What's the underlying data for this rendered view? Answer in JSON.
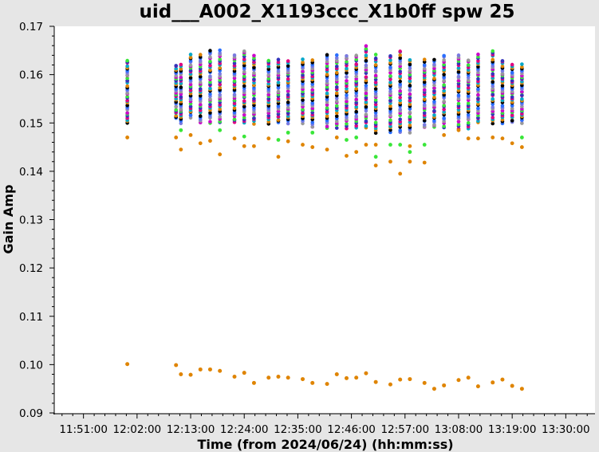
{
  "chart_data": {
    "type": "scatter",
    "title": "uid___A002_X1193ccc_X1b0ff spw 25",
    "xlabel": "Time (from 2024/06/24) (hh:mm:ss)",
    "ylabel": "Gain Amp",
    "xlim": [
      "11:45:00",
      "13:36:00"
    ],
    "ylim": [
      0.09,
      0.17
    ],
    "xticks": [
      "11:51:00",
      "12:02:00",
      "12:13:00",
      "12:24:00",
      "12:35:00",
      "12:46:00",
      "12:57:00",
      "13:08:00",
      "13:19:00",
      "13:30:00"
    ],
    "yticks": [
      "0.09",
      "0.10",
      "0.11",
      "0.12",
      "0.13",
      "0.14",
      "0.15",
      "0.16",
      "0.17"
    ],
    "grid": false,
    "legend": "none",
    "colors": [
      "#000000",
      "#e0007f",
      "#cc00cc",
      "#2a6fff",
      "#00a6c8",
      "#39e639",
      "#7a7adf",
      "#df8400",
      "#3333bb",
      "#999999"
    ],
    "low_series_color": "#df8400",
    "times": [
      "12:00:00",
      "12:10:00",
      "12:11:00",
      "12:13:00",
      "12:15:00",
      "12:17:00",
      "12:19:00",
      "12:22:00",
      "12:24:00",
      "12:26:00",
      "12:29:00",
      "12:31:00",
      "12:33:00",
      "12:36:00",
      "12:38:00",
      "12:41:00",
      "12:43:00",
      "12:45:00",
      "12:47:00",
      "12:49:00",
      "12:51:00",
      "12:54:00",
      "12:56:00",
      "12:58:00",
      "13:01:00",
      "13:03:00",
      "13:05:00",
      "13:08:00",
      "13:10:00",
      "13:12:00",
      "13:15:00",
      "13:17:00",
      "13:19:00",
      "13:21:00"
    ],
    "low_series": [
      0.1001,
      0.0999,
      0.098,
      0.0979,
      0.099,
      0.099,
      0.0987,
      0.0975,
      0.0983,
      0.0962,
      0.0973,
      0.0975,
      0.0973,
      0.097,
      0.0962,
      0.096,
      0.098,
      0.0972,
      0.0973,
      0.0982,
      0.0964,
      0.0959,
      0.0969,
      0.097,
      0.0962,
      0.095,
      0.0957,
      0.0968,
      0.0973,
      0.0955,
      0.0963,
      0.0969,
      0.0956,
      0.095
    ],
    "upper_cluster": [
      {
        "t": "12:00:00",
        "min": 0.15,
        "max": 0.163,
        "outliers": [
          0.147
        ]
      },
      {
        "t": "12:10:00",
        "min": 0.151,
        "max": 0.162,
        "outliers": [
          0.147
        ]
      },
      {
        "t": "12:11:00",
        "min": 0.15,
        "max": 0.162,
        "outliers": [
          0.1445,
          0.1485
        ]
      },
      {
        "t": "12:13:00",
        "min": 0.151,
        "max": 0.164,
        "outliers": [
          0.1475
        ]
      },
      {
        "t": "12:15:00",
        "min": 0.15,
        "max": 0.164,
        "outliers": [
          0.1458
        ]
      },
      {
        "t": "12:17:00",
        "min": 0.15,
        "max": 0.165,
        "outliers": [
          0.1463
        ]
      },
      {
        "t": "12:19:00",
        "min": 0.15,
        "max": 0.165,
        "outliers": [
          0.1435,
          0.1485
        ]
      },
      {
        "t": "12:22:00",
        "min": 0.15,
        "max": 0.164,
        "outliers": [
          0.1468
        ]
      },
      {
        "t": "12:24:00",
        "min": 0.15,
        "max": 0.165,
        "outliers": [
          0.1452,
          0.1472
        ]
      },
      {
        "t": "12:26:00",
        "min": 0.15,
        "max": 0.164,
        "outliers": [
          0.1452
        ]
      },
      {
        "t": "12:29:00",
        "min": 0.15,
        "max": 0.163,
        "outliers": [
          0.1468
        ]
      },
      {
        "t": "12:31:00",
        "min": 0.15,
        "max": 0.163,
        "outliers": [
          0.143,
          0.1465
        ]
      },
      {
        "t": "12:33:00",
        "min": 0.15,
        "max": 0.163,
        "outliers": [
          0.1462,
          0.148
        ]
      },
      {
        "t": "12:36:00",
        "min": 0.15,
        "max": 0.163,
        "outliers": [
          0.1455
        ]
      },
      {
        "t": "12:38:00",
        "min": 0.149,
        "max": 0.163,
        "outliers": [
          0.145,
          0.148
        ]
      },
      {
        "t": "12:41:00",
        "min": 0.149,
        "max": 0.164,
        "outliers": [
          0.1445
        ]
      },
      {
        "t": "12:43:00",
        "min": 0.149,
        "max": 0.164,
        "outliers": [
          0.147
        ]
      },
      {
        "t": "12:45:00",
        "min": 0.149,
        "max": 0.164,
        "outliers": [
          0.1432,
          0.1465
        ]
      },
      {
        "t": "12:47:00",
        "min": 0.149,
        "max": 0.164,
        "outliers": [
          0.144,
          0.147
        ]
      },
      {
        "t": "12:49:00",
        "min": 0.149,
        "max": 0.166,
        "outliers": [
          0.1455
        ]
      },
      {
        "t": "12:51:00",
        "min": 0.148,
        "max": 0.164,
        "outliers": [
          0.1412,
          0.143,
          0.1455
        ]
      },
      {
        "t": "12:54:00",
        "min": 0.148,
        "max": 0.164,
        "outliers": [
          0.142,
          0.1455
        ]
      },
      {
        "t": "12:56:00",
        "min": 0.148,
        "max": 0.165,
        "outliers": [
          0.1395,
          0.1455
        ]
      },
      {
        "t": "12:58:00",
        "min": 0.148,
        "max": 0.163,
        "outliers": [
          0.142,
          0.144,
          0.1452
        ]
      },
      {
        "t": "13:01:00",
        "min": 0.149,
        "max": 0.163,
        "outliers": [
          0.1418,
          0.1455
        ]
      },
      {
        "t": "13:03:00",
        "min": 0.149,
        "max": 0.163,
        "outliers": []
      },
      {
        "t": "13:05:00",
        "min": 0.149,
        "max": 0.164,
        "outliers": [
          0.1475
        ]
      },
      {
        "t": "13:08:00",
        "min": 0.149,
        "max": 0.164,
        "outliers": [
          0.1485
        ]
      },
      {
        "t": "13:10:00",
        "min": 0.149,
        "max": 0.163,
        "outliers": [
          0.1468
        ]
      },
      {
        "t": "13:12:00",
        "min": 0.15,
        "max": 0.164,
        "outliers": [
          0.1468
        ]
      },
      {
        "t": "13:15:00",
        "min": 0.15,
        "max": 0.165,
        "outliers": [
          0.147
        ]
      },
      {
        "t": "13:17:00",
        "min": 0.15,
        "max": 0.163,
        "outliers": [
          0.1468
        ]
      },
      {
        "t": "13:19:00",
        "min": 0.15,
        "max": 0.162,
        "outliers": [
          0.1458
        ]
      },
      {
        "t": "13:21:00",
        "min": 0.15,
        "max": 0.162,
        "outliers": [
          0.145,
          0.147
        ]
      }
    ]
  }
}
